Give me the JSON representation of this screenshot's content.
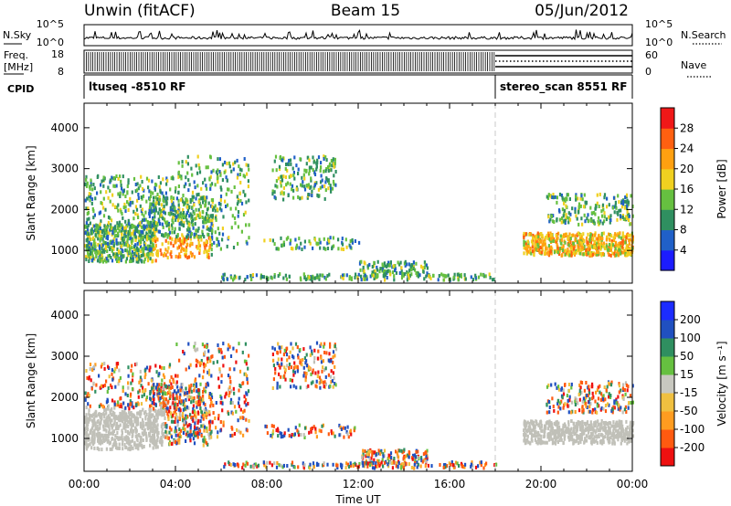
{
  "header": {
    "station": "Unwin (fitACF)",
    "beam": "Beam 15",
    "date": "05/Jun/2012"
  },
  "chart_data": [
    {
      "type": "line",
      "panel": "noise",
      "left_label": "N.Sky",
      "right_label": "N.Search",
      "left_ticks": [
        "10^5",
        "10^0"
      ],
      "right_ticks": [
        "10^5",
        "10^0"
      ]
    },
    {
      "type": "line",
      "panel": "frequency",
      "left_label": "Freq.",
      "left_unit": "[MHz]",
      "right_label": "Nave",
      "left_ticks": [
        18,
        8
      ],
      "right_ticks": [
        60,
        0
      ]
    },
    {
      "type": "table",
      "panel": "cpid",
      "label": "CPID",
      "segments": [
        {
          "start_hour": 0,
          "end_hour": 18,
          "text": "ltuseq -8510 RF"
        },
        {
          "start_hour": 18,
          "end_hour": 24,
          "text": "stereo_scan 8551 RF"
        }
      ]
    },
    {
      "type": "heatmap",
      "panel": "power",
      "ylabel": "Slant Range [km]",
      "ylim": [
        200,
        4600
      ],
      "yticks": [
        1000,
        2000,
        3000,
        4000
      ],
      "xlim": [
        0,
        24
      ],
      "colorbar": {
        "label": "Power [dB]",
        "ticks": [
          "4",
          "8",
          "12",
          "16",
          "20",
          "24",
          "28"
        ],
        "colors": [
          "#1c1cff",
          "#2060c8",
          "#2f8f60",
          "#66c040",
          "#f0d020",
          "#ffa010",
          "#ff6010",
          "#f01818"
        ]
      }
    },
    {
      "type": "heatmap",
      "panel": "velocity",
      "ylabel": "Slant Range [km]",
      "ylim": [
        200,
        4600
      ],
      "yticks": [
        1000,
        2000,
        3000,
        4000
      ],
      "xlim": [
        0,
        24
      ],
      "xlabel": "Time UT",
      "xticks": [
        "00:00",
        "04:00",
        "08:00",
        "12:00",
        "16:00",
        "20:00",
        "00:00"
      ],
      "colorbar": {
        "label": "Velocity [m s⁻¹]",
        "ticks": [
          "-200",
          "-100",
          "-50",
          "-15",
          "15",
          "50",
          "100",
          "200"
        ],
        "colors": [
          "#ee1010",
          "#ff5a10",
          "#ff9c20",
          "#f0c040",
          "#c8c8c0",
          "#66c040",
          "#2f8f60",
          "#2050c0",
          "#1c2cff"
        ]
      }
    }
  ],
  "colors": {
    "ground_scatter": "#c0c0b8",
    "transition_line": "#c8c8c8"
  }
}
